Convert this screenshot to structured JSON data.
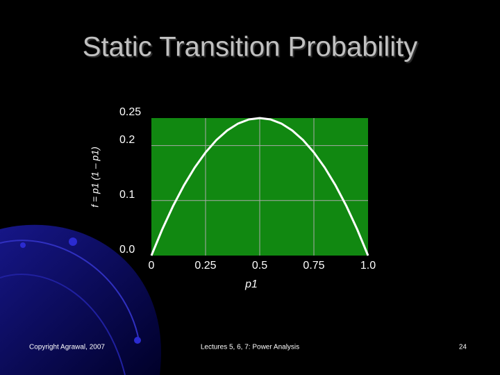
{
  "chart_data": {
    "type": "line",
    "title": "Static Transition Probability",
    "y_label": "f = p1 (1 – p1)",
    "x_label": "p1",
    "x": [
      0,
      0.05,
      0.1,
      0.15,
      0.2,
      0.25,
      0.3,
      0.35,
      0.4,
      0.45,
      0.5,
      0.55,
      0.6,
      0.65,
      0.7,
      0.75,
      0.8,
      0.85,
      0.9,
      0.95,
      1.0
    ],
    "values": [
      0,
      0.0475,
      0.09,
      0.1275,
      0.16,
      0.1875,
      0.21,
      0.2275,
      0.24,
      0.2475,
      0.25,
      0.2475,
      0.24,
      0.2275,
      0.21,
      0.1875,
      0.16,
      0.1275,
      0.09,
      0.0475,
      0
    ],
    "color": "#ffffff",
    "plot_background": "#118811",
    "xlim": [
      0,
      1
    ],
    "ylim": [
      0,
      0.25
    ],
    "xticks": [
      0,
      0.25,
      0.5,
      0.75,
      {
        "value": 1,
        "label": "1.0"
      }
    ],
    "yticks": [
      {
        "value": 0,
        "label": "0.0"
      },
      0.1,
      0.2,
      0.25
    ],
    "grid": true
  },
  "footer": {
    "left": "Copyright Agrawal, 2007",
    "center": "Lectures 5, 6, 7: Power Analysis",
    "page": "24"
  }
}
